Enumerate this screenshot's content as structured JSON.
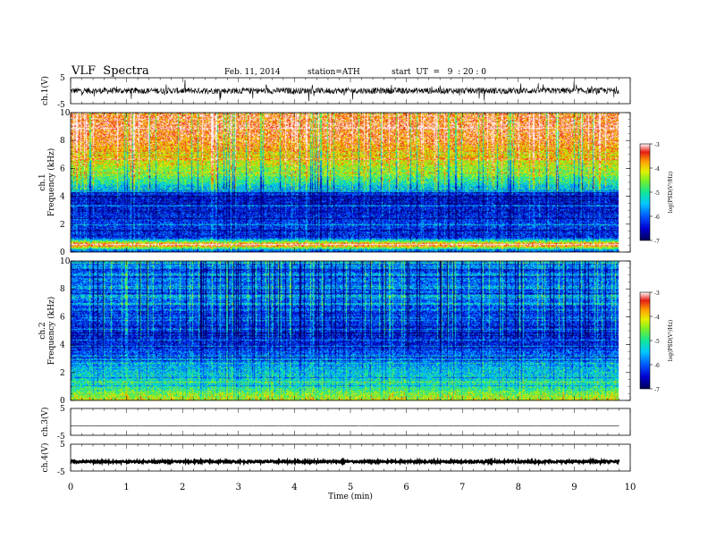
{
  "header": {
    "title": "VLF  Spectra",
    "date": "Feb. 11, 2014",
    "station": "station=ATH",
    "start_ut": "start  UT  =   9  : 20 : 0"
  },
  "chart_data": [
    {
      "type": "line",
      "panel": "ch1-waveform",
      "ylabel": "ch.1(V)",
      "ylim": [
        -5,
        5
      ],
      "yticks": [
        "5",
        "-5"
      ],
      "xlim": [
        0,
        9.8
      ],
      "description_values": {
        "baseline_v": 0.0,
        "noise_amplitude_v": 1.2,
        "spike_amplitude_v": 3.5
      },
      "color": "#000000"
    },
    {
      "type": "heatmap",
      "panel": "ch1-spectrogram",
      "ylabel_channel": "ch.1",
      "ylabel": "Frequency  (kHz)",
      "ylim": [
        0,
        10
      ],
      "yticks": [
        "0",
        "2",
        "4",
        "6",
        "8",
        "10"
      ],
      "xlim": [
        0,
        9.8
      ],
      "profile_khz": [
        0,
        0.5,
        1,
        2,
        3,
        4,
        4.3,
        5,
        6,
        7,
        8,
        9,
        10
      ],
      "profile_logpsd": [
        -6.2,
        -3.2,
        -6.3,
        -6.2,
        -6.4,
        -6.5,
        -6.0,
        -5.0,
        -4.4,
        -3.9,
        -3.5,
        -3.3,
        -3.3
      ],
      "colorbar": {
        "label": "log(PSD(V²/Hz)",
        "range": [
          -7,
          -3
        ],
        "ticks": [
          "-3",
          "-4",
          "-5",
          "-6",
          "-7"
        ]
      }
    },
    {
      "type": "heatmap",
      "panel": "ch2-spectrogram",
      "ylabel_channel": "ch.2",
      "ylabel": "Frequency  (kHz)",
      "ylim": [
        0,
        10
      ],
      "yticks": [
        "0",
        "2",
        "4",
        "6",
        "8",
        "10"
      ],
      "xlim": [
        0,
        9.8
      ],
      "profile_khz": [
        0,
        0.5,
        1,
        2,
        3,
        4,
        5,
        6,
        7,
        8,
        9,
        10
      ],
      "profile_logpsd": [
        -4.2,
        -4.6,
        -5.1,
        -5.4,
        -5.9,
        -6.4,
        -6.3,
        -6.2,
        -6.0,
        -5.9,
        -5.8,
        -5.7
      ],
      "colorbar": {
        "label": "log(PSD(V²/Hz)",
        "range": [
          -7,
          -3
        ],
        "ticks": [
          "-3",
          "-4",
          "-5",
          "-6",
          "-7"
        ]
      }
    },
    {
      "type": "line",
      "panel": "ch3-waveform",
      "ylabel": "ch.3(V)",
      "ylim": [
        -5,
        5
      ],
      "yticks": [
        "5",
        "-5"
      ],
      "xlim": [
        0,
        9.8
      ],
      "description_values": {
        "baseline_v": -1.5,
        "noise_amplitude_v": 0.05
      },
      "color": "#000000"
    },
    {
      "type": "line",
      "panel": "ch4-waveform",
      "ylabel": "ch.4(V)",
      "ylim": [
        -5,
        5
      ],
      "yticks": [
        "5",
        "-5"
      ],
      "xlim": [
        0,
        9.8
      ],
      "description_values": {
        "baseline_v": -1.5,
        "noise_amplitude_v": 0.35
      },
      "color": "#000000"
    }
  ],
  "x_axis": {
    "label": "Time  (min)",
    "range": [
      0,
      10
    ],
    "ticks": [
      "0",
      "1",
      "2",
      "3",
      "4",
      "5",
      "6",
      "7",
      "8",
      "9",
      "10"
    ]
  }
}
